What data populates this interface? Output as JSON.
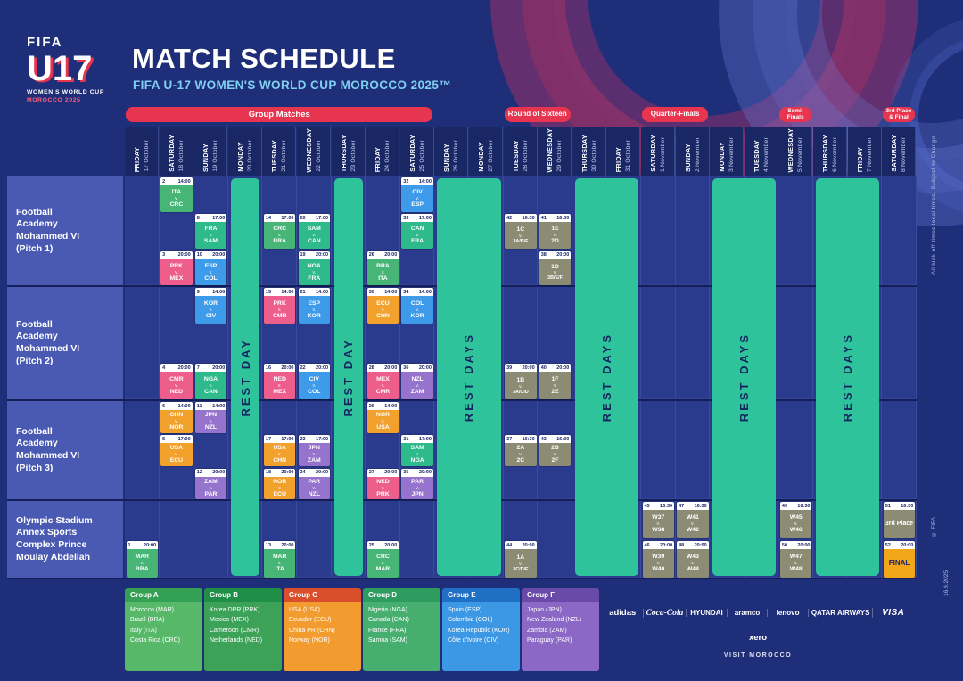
{
  "meta": {
    "title": "MATCH SCHEDULE",
    "subtitle": "FIFA U-17 WOMEN'S WORLD CUP MOROCCO 2025™"
  },
  "logo": {
    "fifa": "FIFA",
    "u17": "U17",
    "line1": "WOMEN'S WORLD CUP",
    "line2": "MOROCCO 2025"
  },
  "side_notes": {
    "kickoff": "All kick-off times local times. Subject to Change.",
    "copyright": "© FIFA",
    "version": "16.9.2025"
  },
  "colors": {
    "stage_band": "#e8354f",
    "rest_bar": "#2fc39b",
    "day_header_bg": "#1a2765",
    "grid_cell_bg": "#2a3a8c",
    "venue_label_bg": "#4a59b2",
    "group_cell": {
      "A": "#47b576",
      "B": "#ee5e8d",
      "C": "#f2a12d",
      "D": "#2fba8c",
      "E": "#3e9be9",
      "F": "#9673cc",
      "K": "#8c8c75",
      "FINAL": "#f2a71b"
    }
  },
  "stages": [
    {
      "lines": [
        "Group Matches"
      ],
      "start": 0,
      "end": 8,
      "fs": 9.5
    },
    {
      "lines": [
        "Round of Sixteen"
      ],
      "start": 11,
      "end": 12,
      "fs": 8
    },
    {
      "lines": [
        "Quarter-Finals"
      ],
      "start": 15,
      "end": 16,
      "fs": 8
    },
    {
      "lines": [
        "Semi-",
        "Finals"
      ],
      "start": 19,
      "end": 19,
      "fs": 6.5
    },
    {
      "lines": [
        "3rd Place",
        "& Final"
      ],
      "start": 22,
      "end": 22,
      "fs": 6.5
    }
  ],
  "columns": [
    {
      "day": "FRIDAY",
      "date": "17 October"
    },
    {
      "day": "SATURDAY",
      "date": "18 October"
    },
    {
      "day": "SUNDAY",
      "date": "19 October"
    },
    {
      "day": "MONDAY",
      "date": "20 October"
    },
    {
      "day": "TUESDAY",
      "date": "21 October"
    },
    {
      "day": "WEDNESDAY",
      "date": "22 October"
    },
    {
      "day": "THURSDAY",
      "date": "23 October"
    },
    {
      "day": "FRIDAY",
      "date": "24 October"
    },
    {
      "day": "SATURDAY",
      "date": "25 October"
    },
    {
      "day": "SUNDAY",
      "date": "26 October"
    },
    {
      "day": "MONDAY",
      "date": "27 October"
    },
    {
      "day": "TUESDAY",
      "date": "28 October"
    },
    {
      "day": "WEDNESDAY",
      "date": "29 October"
    },
    {
      "day": "THURSDAY",
      "date": "30 October"
    },
    {
      "day": "FRIDAY",
      "date": "31 October"
    },
    {
      "day": "SATURDAY",
      "date": "1 November"
    },
    {
      "day": "SUNDAY",
      "date": "2 November"
    },
    {
      "day": "MONDAY",
      "date": "3 November"
    },
    {
      "day": "TUESDAY",
      "date": "4 November"
    },
    {
      "day": "WEDNESDAY",
      "date": "5 November"
    },
    {
      "day": "THURSDAY",
      "date": "6 November"
    },
    {
      "day": "FRIDAY",
      "date": "7 November"
    },
    {
      "day": "SATURDAY",
      "date": "8 November"
    }
  ],
  "rest_bars": [
    {
      "cols": [
        3,
        3
      ],
      "label": "REST DAY"
    },
    {
      "cols": [
        6,
        6
      ],
      "label": "REST DAY"
    },
    {
      "cols": [
        9,
        10
      ],
      "label": "REST DAYS"
    },
    {
      "cols": [
        13,
        14
      ],
      "label": "REST DAYS"
    },
    {
      "cols": [
        17,
        18
      ],
      "label": "REST DAYS"
    },
    {
      "cols": [
        20,
        21
      ],
      "label": "REST DAYS"
    }
  ],
  "venues": [
    {
      "id": "P1",
      "lines": [
        "Football",
        "Academy",
        "Mohammed  VI",
        "(Pitch 1)"
      ]
    },
    {
      "id": "P2",
      "lines": [
        "Football",
        "Academy",
        "Mohammed  VI",
        "(Pitch 2)"
      ]
    },
    {
      "id": "P3",
      "lines": [
        "Football",
        "Academy",
        "Mohammed  VI",
        "(Pitch 3)"
      ]
    },
    {
      "id": "O",
      "lines": [
        "Olympic Stadium",
        "Annex Sports",
        "Complex Prince",
        "Moulay Abdellah"
      ]
    }
  ],
  "matches": [
    {
      "n": 1,
      "time": "20:00",
      "col": 0,
      "venue": "O",
      "row": 1,
      "home": "MAR",
      "away": "BRA",
      "group": "A"
    },
    {
      "n": 2,
      "time": "14:00",
      "col": 1,
      "venue": "P1",
      "row": 0,
      "home": "ITA",
      "away": "CRC",
      "group": "A"
    },
    {
      "n": 3,
      "time": "20:00",
      "col": 1,
      "venue": "P1",
      "row": 2,
      "home": "PRK",
      "away": "MEX",
      "group": "B"
    },
    {
      "n": 4,
      "time": "20:00",
      "col": 1,
      "venue": "P2",
      "row": 2,
      "home": "CMR",
      "away": "NED",
      "group": "B"
    },
    {
      "n": 5,
      "time": "17:00",
      "col": 1,
      "venue": "P3",
      "row": 1,
      "home": "USA",
      "away": "ECU",
      "group": "C"
    },
    {
      "n": 6,
      "time": "14:00",
      "col": 1,
      "venue": "P3",
      "row": 0,
      "home": "CHN",
      "away": "NOR",
      "group": "C"
    },
    {
      "n": 7,
      "time": "20:00",
      "col": 2,
      "venue": "P2",
      "row": 2,
      "home": "NGA",
      "away": "CAN",
      "group": "D"
    },
    {
      "n": 8,
      "time": "17:00",
      "col": 2,
      "venue": "P1",
      "row": 1,
      "home": "FRA",
      "away": "SAM",
      "group": "D"
    },
    {
      "n": 9,
      "time": "14:00",
      "col": 2,
      "venue": "P2",
      "row": 0,
      "home": "KOR",
      "away": "CIV",
      "group": "E"
    },
    {
      "n": 10,
      "time": "20:00",
      "col": 2,
      "venue": "P1",
      "row": 2,
      "home": "ESP",
      "away": "COL",
      "group": "E"
    },
    {
      "n": 11,
      "time": "14:00",
      "col": 2,
      "venue": "P3",
      "row": 0,
      "home": "JPN",
      "away": "NZL",
      "group": "F"
    },
    {
      "n": 12,
      "time": "20:00",
      "col": 2,
      "venue": "P3",
      "row": 2,
      "home": "ZAM",
      "away": "PAR",
      "group": "F"
    },
    {
      "n": 13,
      "time": "20:00",
      "col": 4,
      "venue": "O",
      "row": 1,
      "home": "MAR",
      "away": "ITA",
      "group": "A"
    },
    {
      "n": 14,
      "time": "17:00",
      "col": 4,
      "venue": "P1",
      "row": 1,
      "home": "CRC",
      "away": "BRA",
      "group": "A"
    },
    {
      "n": 15,
      "time": "14:00",
      "col": 4,
      "venue": "P2",
      "row": 0,
      "home": "PRK",
      "away": "CMR",
      "group": "B"
    },
    {
      "n": 16,
      "time": "20:00",
      "col": 4,
      "venue": "P2",
      "row": 2,
      "home": "NED",
      "away": "MEX",
      "group": "B"
    },
    {
      "n": 17,
      "time": "17:00",
      "col": 4,
      "venue": "P3",
      "row": 1,
      "home": "USA",
      "away": "CHN",
      "group": "C"
    },
    {
      "n": 18,
      "time": "20:00",
      "col": 4,
      "venue": "P3",
      "row": 2,
      "home": "NOR",
      "away": "ECU",
      "group": "C"
    },
    {
      "n": 19,
      "time": "20:00",
      "col": 5,
      "venue": "P1",
      "row": 2,
      "home": "NGA",
      "away": "FRA",
      "group": "D"
    },
    {
      "n": 20,
      "time": "17:00",
      "col": 5,
      "venue": "P1",
      "row": 1,
      "home": "SAM",
      "away": "CAN",
      "group": "D"
    },
    {
      "n": 21,
      "time": "14:00",
      "col": 5,
      "venue": "P2",
      "row": 0,
      "home": "ESP",
      "away": "KOR",
      "group": "E"
    },
    {
      "n": 22,
      "time": "20:00",
      "col": 5,
      "venue": "P2",
      "row": 2,
      "home": "CIV",
      "away": "COL",
      "group": "E"
    },
    {
      "n": 23,
      "time": "17:00",
      "col": 5,
      "venue": "P3",
      "row": 1,
      "home": "JPN",
      "away": "ZAM",
      "group": "F"
    },
    {
      "n": 24,
      "time": "20:00",
      "col": 5,
      "venue": "P3",
      "row": 2,
      "home": "PAR",
      "away": "NZL",
      "group": "F"
    },
    {
      "n": 25,
      "time": "20:00",
      "col": 7,
      "venue": "O",
      "row": 1,
      "home": "CRC",
      "away": "MAR",
      "group": "A"
    },
    {
      "n": 26,
      "time": "20:00",
      "col": 7,
      "venue": "P1",
      "row": 2,
      "home": "BRA",
      "away": "ITA",
      "group": "A"
    },
    {
      "n": 27,
      "time": "20:00",
      "col": 7,
      "venue": "P3",
      "row": 2,
      "home": "NED",
      "away": "PRK",
      "group": "B"
    },
    {
      "n": 28,
      "time": "20:00",
      "col": 7,
      "venue": "P2",
      "row": 2,
      "home": "MEX",
      "away": "CMR",
      "group": "B"
    },
    {
      "n": 29,
      "time": "14:00",
      "col": 7,
      "venue": "P3",
      "row": 0,
      "home": "NOR",
      "away": "USA",
      "group": "C"
    },
    {
      "n": 30,
      "time": "14:00",
      "col": 7,
      "venue": "P2",
      "row": 0,
      "home": "ECU",
      "away": "CHN",
      "group": "C"
    },
    {
      "n": 31,
      "time": "17:00",
      "col": 8,
      "venue": "P3",
      "row": 1,
      "home": "SAM",
      "away": "NGA",
      "group": "D"
    },
    {
      "n": 32,
      "time": "14:00",
      "col": 8,
      "venue": "P1",
      "row": 0,
      "home": "CIV",
      "away": "ESP",
      "group": "E"
    },
    {
      "n": 33,
      "time": "17:00",
      "col": 8,
      "venue": "P1",
      "row": 1,
      "home": "CAN",
      "away": "FRA",
      "group": "D"
    },
    {
      "n": 34,
      "time": "14:00",
      "col": 8,
      "venue": "P2",
      "row": 0,
      "home": "COL",
      "away": "KOR",
      "group": "E"
    },
    {
      "n": 35,
      "time": "20:00",
      "col": 8,
      "venue": "P3",
      "row": 2,
      "home": "PAR",
      "away": "JPN",
      "group": "F"
    },
    {
      "n": 36,
      "time": "20:00",
      "col": 8,
      "venue": "P2",
      "row": 2,
      "home": "NZL",
      "away": "ZAM",
      "group": "F"
    },
    {
      "n": 37,
      "time": "16:30",
      "col": 11,
      "venue": "P3",
      "row": 1,
      "home": "2A",
      "away": "2C",
      "group": "K"
    },
    {
      "n": 38,
      "time": "20:00",
      "col": 12,
      "venue": "P1",
      "row": 2,
      "home": "1D",
      "away": "3B/E/F",
      "group": "K"
    },
    {
      "n": 39,
      "time": "20:00",
      "col": 11,
      "venue": "P2",
      "row": 2,
      "home": "1B",
      "away": "3A/C/D",
      "group": "K"
    },
    {
      "n": 40,
      "time": "20:00",
      "col": 12,
      "venue": "P2",
      "row": 2,
      "home": "1F",
      "away": "2E",
      "group": "K"
    },
    {
      "n": 41,
      "time": "16:30",
      "col": 12,
      "venue": "P1",
      "row": 1,
      "home": "1E",
      "away": "2D",
      "group": "K"
    },
    {
      "n": 42,
      "time": "16:30",
      "col": 11,
      "venue": "P1",
      "row": 1,
      "home": "1C",
      "away": "3A/B/F",
      "group": "K"
    },
    {
      "n": 43,
      "time": "16:30",
      "col": 12,
      "venue": "P3",
      "row": 1,
      "home": "2B",
      "away": "2F",
      "group": "K"
    },
    {
      "n": 44,
      "time": "20:00",
      "col": 11,
      "venue": "O",
      "row": 1,
      "home": "1A",
      "away": "3C/D/E",
      "group": "K"
    },
    {
      "n": 45,
      "time": "16:30",
      "col": 15,
      "venue": "O",
      "row": 0,
      "home": "W37",
      "away": "W38",
      "group": "K"
    },
    {
      "n": 46,
      "time": "20:00",
      "col": 15,
      "venue": "O",
      "row": 1,
      "home": "W39",
      "away": "W40",
      "group": "K"
    },
    {
      "n": 47,
      "time": "16:30",
      "col": 16,
      "venue": "O",
      "row": 0,
      "home": "W41",
      "away": "W42",
      "group": "K"
    },
    {
      "n": 48,
      "time": "20:00",
      "col": 16,
      "venue": "O",
      "row": 1,
      "home": "W43",
      "away": "W44",
      "group": "K"
    },
    {
      "n": 49,
      "time": "16:30",
      "col": 19,
      "venue": "O",
      "row": 0,
      "home": "W45",
      "away": "W46",
      "group": "K"
    },
    {
      "n": 50,
      "time": "20:00",
      "col": 19,
      "venue": "O",
      "row": 1,
      "home": "W47",
      "away": "W48",
      "group": "K"
    },
    {
      "n": 51,
      "time": "16:30",
      "col": 22,
      "venue": "O",
      "row": 0,
      "label": "3rd Place",
      "group": "K"
    },
    {
      "n": 52,
      "time": "20:00",
      "col": 22,
      "venue": "O",
      "row": 1,
      "label": "FINAL",
      "group": "FINAL"
    }
  ],
  "legend": [
    {
      "name": "Group A",
      "head": "#33a054",
      "body": "#58b86a",
      "teams": [
        "Morocco (MAR)",
        "Brazil (BRA)",
        "Italy (ITA)",
        "Costa Rica (CRC)"
      ]
    },
    {
      "name": "Group B",
      "head": "#1f8e46",
      "body": "#3ba258",
      "teams": [
        "Korea DPR (PRK)",
        "Mexico (MEX)",
        "Cameroon (CMR)",
        "Netherlands (NED)"
      ]
    },
    {
      "name": "Group C",
      "head": "#d94f2b",
      "body": "#f29b2e",
      "teams": [
        "USA (USA)",
        "Ecuador (ECU)",
        "China PR (CHN)",
        "Norway (NOR)"
      ]
    },
    {
      "name": "Group D",
      "head": "#2e9b5f",
      "body": "#46af70",
      "teams": [
        "Nigeria (NGA)",
        "Canada (CAN)",
        "France (FRA)",
        "Samoa (SAM)"
      ]
    },
    {
      "name": "Group E",
      "head": "#1f6fc4",
      "body": "#3c97e5",
      "teams": [
        "Spain (ESP)",
        "Colombia (COL)",
        "Korea Republic (KOR)",
        "Côte d'Ivoire (CIV)"
      ]
    },
    {
      "name": "Group F",
      "head": "#6a4aa8",
      "body": "#8b67c6",
      "teams": [
        "Japan (JPN)",
        "New Zealand (NZL)",
        "Zambia (ZAM)",
        "Paraguay (PAR)"
      ]
    }
  ],
  "sponsors": {
    "row1": [
      "adidas",
      "Coca-Cola",
      "HYUNDAI",
      "aramco",
      "lenovo",
      "QATAR AIRWAYS",
      "VISA"
    ],
    "row2": [
      "xero"
    ],
    "row3": [
      "VISIT MOROCCO"
    ]
  }
}
